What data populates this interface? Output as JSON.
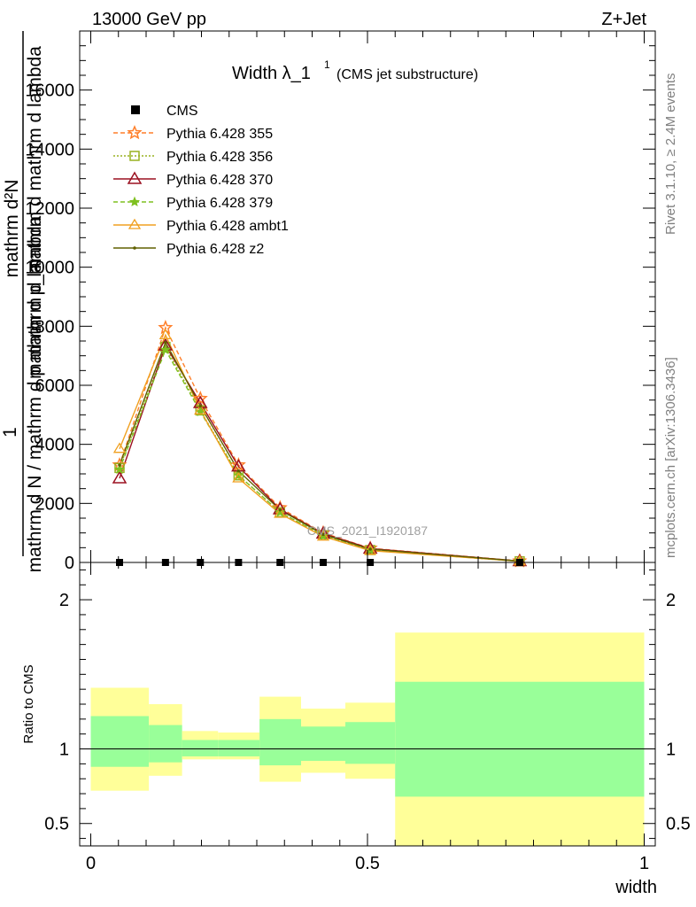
{
  "header": {
    "left": "13000 GeV pp",
    "right": "Z+Jet"
  },
  "side_text": {
    "top": "Rivet 3.1.10, ≥ 2.4M events",
    "bottom": "mcplots.cern.ch [arXiv:1306.3436]"
  },
  "colors": {
    "band_inner": "#99ff99",
    "band_outer": "#ffff99",
    "p355": "#ff7f2a",
    "p356": "#99b220",
    "p370": "#9b1020",
    "p379": "#7fc020",
    "ambt1": "#f0a020",
    "z2": "#606000"
  },
  "chart_data": [
    {
      "type": "line",
      "title_main": "Width λ_1",
      "title_sup": "1",
      "title_sub": "(CMS jet substructure)",
      "ylabel_top": "mathrm d²N",
      "ylabel_mid": "mathrm d p_mathrm d mathrm d lambda",
      "ylabel_one": "1",
      "ylabel_bottom": "mathrm d N / mathrm d p mathrm d lambda",
      "watermark": "CMS_2021_I1920187",
      "xlim": [
        -0.02,
        1.02
      ],
      "ylim": [
        0,
        18000
      ],
      "yticks": [
        {
          "v": 0,
          "label": "0"
        },
        {
          "v": 2000,
          "label": "2000"
        },
        {
          "v": 4000,
          "label": "4000"
        },
        {
          "v": 6000,
          "label": "6000"
        },
        {
          "v": 8000,
          "label": "8000"
        },
        {
          "v": 10000,
          "label": "10000"
        },
        {
          "v": 12000,
          "label": "12000"
        },
        {
          "v": 14000,
          "label": "14000"
        },
        {
          "v": 16000,
          "label": "16000"
        }
      ],
      "legend_position": "top-left",
      "data_points": {
        "name": "CMS",
        "x": [
          0.052,
          0.135,
          0.198,
          0.267,
          0.342,
          0.42,
          0.505,
          0.775
        ],
        "y": [
          0,
          0,
          0,
          0,
          0,
          0,
          0,
          0
        ]
      },
      "series": [
        {
          "name": "Pythia 6.428 355",
          "key": "p355",
          "dash": "5,3",
          "marker": "star",
          "x": [
            0.052,
            0.135,
            0.198,
            0.267,
            0.342,
            0.42,
            0.505,
            0.775
          ],
          "y": [
            3300,
            7950,
            5550,
            3300,
            1850,
            1000,
            480,
            50
          ]
        },
        {
          "name": "Pythia 6.428 356",
          "key": "p356",
          "dash": "2,2",
          "marker": "square",
          "x": [
            0.052,
            0.135,
            0.198,
            0.267,
            0.342,
            0.42,
            0.505,
            0.775
          ],
          "y": [
            3200,
            7300,
            5150,
            2950,
            1700,
            920,
            420,
            40
          ]
        },
        {
          "name": "Pythia 6.428 370",
          "key": "p370",
          "dash": "",
          "marker": "triangle",
          "x": [
            0.052,
            0.135,
            0.198,
            0.267,
            0.342,
            0.42,
            0.505,
            0.775
          ],
          "y": [
            2850,
            7350,
            5400,
            3250,
            1800,
            980,
            470,
            45
          ]
        },
        {
          "name": "Pythia 6.428 379",
          "key": "p379",
          "dash": "5,3",
          "marker": "smallstar",
          "x": [
            0.052,
            0.135,
            0.198,
            0.267,
            0.342,
            0.42,
            0.505,
            0.775
          ],
          "y": [
            3150,
            7200,
            5100,
            2950,
            1700,
            900,
            410,
            40
          ]
        },
        {
          "name": "Pythia 6.428 ambt1",
          "key": "ambt1",
          "dash": "",
          "marker": "triangle-small",
          "x": [
            0.052,
            0.135,
            0.198,
            0.267,
            0.342,
            0.42,
            0.505,
            0.775
          ],
          "y": [
            3850,
            7700,
            5150,
            2850,
            1650,
            880,
            400,
            40
          ]
        },
        {
          "name": "Pythia 6.428 z2",
          "key": "z2",
          "dash": "",
          "marker": "dot",
          "x": [
            0.052,
            0.135,
            0.198,
            0.267,
            0.342,
            0.42,
            0.505,
            0.775
          ],
          "y": [
            3300,
            7450,
            5300,
            3100,
            1780,
            950,
            450,
            45
          ]
        }
      ]
    },
    {
      "type": "area",
      "ylabel": "Ratio to CMS",
      "xlabel": "width",
      "xlim": [
        -0.02,
        1.02
      ],
      "ylim": [
        0.35,
        2.25
      ],
      "xticks": [
        {
          "v": 0,
          "label": "0"
        },
        {
          "v": 0.5,
          "label": "0.5"
        },
        {
          "v": 1,
          "label": "1"
        }
      ],
      "yticks": [
        {
          "v": 0.5,
          "label": "0.5"
        },
        {
          "v": 1,
          "label": "1"
        },
        {
          "v": 2,
          "label": "2"
        }
      ],
      "bins": [
        {
          "x0": 0.0,
          "x1": 0.105,
          "inner": [
            0.88,
            1.22
          ],
          "outer": [
            0.72,
            1.41
          ]
        },
        {
          "x0": 0.105,
          "x1": 0.165,
          "inner": [
            0.91,
            1.16
          ],
          "outer": [
            0.82,
            1.3
          ]
        },
        {
          "x0": 0.165,
          "x1": 0.23,
          "inner": [
            0.95,
            1.06
          ],
          "outer": [
            0.93,
            1.12
          ]
        },
        {
          "x0": 0.23,
          "x1": 0.305,
          "inner": [
            0.95,
            1.06
          ],
          "outer": [
            0.93,
            1.11
          ]
        },
        {
          "x0": 0.305,
          "x1": 0.38,
          "inner": [
            0.89,
            1.2
          ],
          "outer": [
            0.78,
            1.35
          ]
        },
        {
          "x0": 0.38,
          "x1": 0.46,
          "inner": [
            0.92,
            1.15
          ],
          "outer": [
            0.84,
            1.27
          ]
        },
        {
          "x0": 0.46,
          "x1": 0.55,
          "inner": [
            0.9,
            1.18
          ],
          "outer": [
            0.8,
            1.31
          ]
        },
        {
          "x0": 0.55,
          "x1": 1.0,
          "inner": [
            0.68,
            1.45
          ],
          "outer": [
            0.35,
            1.78
          ]
        }
      ],
      "reference": 1
    }
  ]
}
